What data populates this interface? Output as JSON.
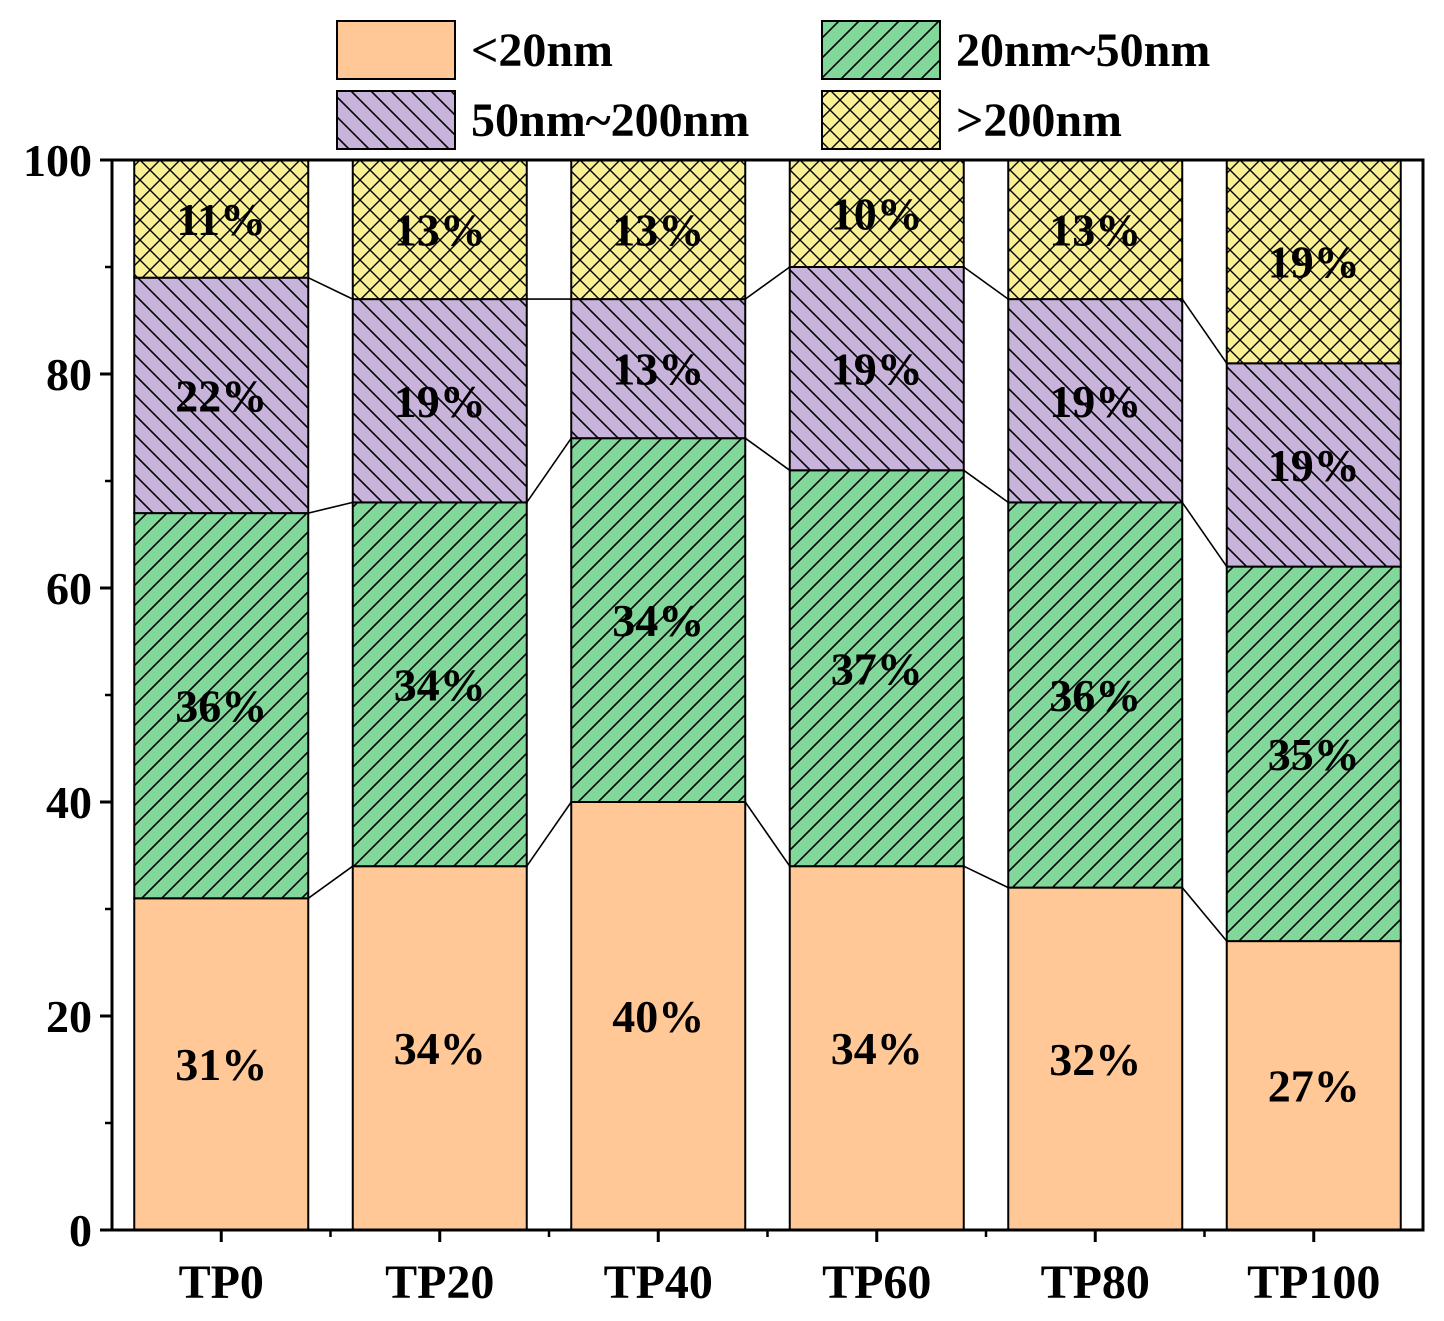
{
  "chart_data": {
    "type": "bar",
    "stacked": true,
    "categories": [
      "TP0",
      "TP20",
      "TP40",
      "TP60",
      "TP80",
      "TP100"
    ],
    "series": [
      {
        "name": "<20nm",
        "values": [
          31,
          34,
          40,
          34,
          32,
          27
        ],
        "labels": [
          "31%",
          "34%",
          "40%",
          "34%",
          "32%",
          "27%"
        ],
        "color": "#FFC896",
        "pattern": "none"
      },
      {
        "name": "20nm~50nm",
        "values": [
          36,
          34,
          34,
          37,
          36,
          35
        ],
        "labels": [
          "36%",
          "34%",
          "34%",
          "37%",
          "36%",
          "35%"
        ],
        "color": "#82D89A",
        "pattern": "forward-diagonal"
      },
      {
        "name": "50nm~200nm",
        "values": [
          22,
          19,
          13,
          19,
          19,
          19
        ],
        "labels": [
          "22%",
          "19%",
          "13%",
          "19%",
          "19%",
          "19%"
        ],
        "color": "#C8B4DA",
        "pattern": "back-diagonal"
      },
      {
        "name": ">200nm",
        "values": [
          11,
          13,
          13,
          10,
          13,
          19
        ],
        "labels": [
          "11%",
          "13%",
          "13%",
          "10%",
          "13%",
          "19%"
        ],
        "color": "#FAF096",
        "pattern": "crosshatch"
      }
    ],
    "title": "",
    "xlabel": "",
    "ylabel": "",
    "ylim": [
      0,
      100
    ],
    "yticks": [
      0,
      20,
      40,
      60,
      80,
      100
    ],
    "legend": "top",
    "grid": false,
    "connector_lines": true
  }
}
